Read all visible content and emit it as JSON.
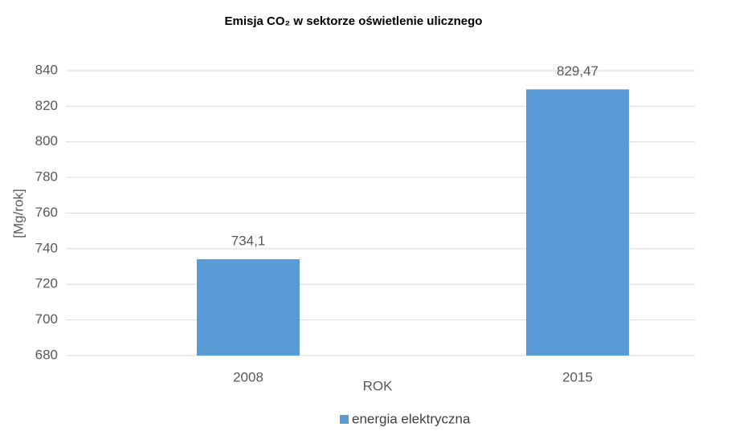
{
  "chart_data": {
    "type": "bar",
    "title": "Emisja CO₂ w sektorze oświetlenie ulicznego",
    "categories": [
      "2008",
      "2015"
    ],
    "values": [
      734.1,
      829.47
    ],
    "value_labels": [
      "734,1",
      "829,47"
    ],
    "color": "#5b9bd5",
    "series_name": "energia elektryczna",
    "xlabel": "ROK",
    "ylabel": "[Mg/rok]",
    "ylim": [
      680,
      840
    ],
    "yticks": [
      680,
      700,
      720,
      740,
      760,
      780,
      800,
      820,
      840
    ],
    "grid": true,
    "legend": "bottom"
  }
}
